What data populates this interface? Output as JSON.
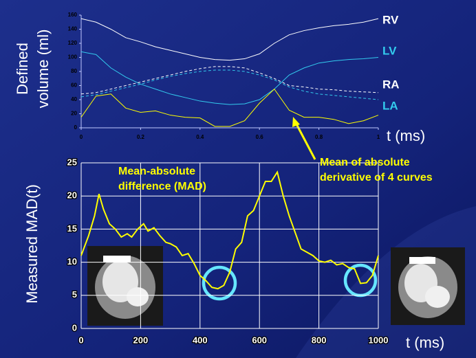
{
  "chart_data": [
    {
      "type": "line",
      "y_label": [
        "Defined",
        "volume (ml)"
      ],
      "x_label": "t (ms)",
      "x": [
        0,
        0.05,
        0.1,
        0.15,
        0.2,
        0.25,
        0.3,
        0.35,
        0.4,
        0.45,
        0.5,
        0.55,
        0.6,
        0.65,
        0.7,
        0.75,
        0.8,
        0.85,
        0.9,
        0.95,
        1
      ],
      "xlim": [
        0,
        1
      ],
      "xticks": [
        0,
        0.2,
        0.4,
        0.6,
        0.8,
        1
      ],
      "ylim": [
        0,
        160
      ],
      "yticks": [
        0,
        20,
        40,
        60,
        80,
        100,
        120,
        140,
        160
      ],
      "grid": false,
      "series": [
        {
          "name": "RV",
          "color": "#ffffff",
          "dashed": false,
          "values": [
            155,
            150,
            140,
            128,
            122,
            115,
            110,
            105,
            100,
            97,
            96,
            98,
            105,
            120,
            132,
            138,
            142,
            145,
            147,
            150,
            155
          ]
        },
        {
          "name": "LV",
          "color": "#33ccee",
          "dashed": false,
          "values": [
            108,
            104,
            85,
            72,
            62,
            55,
            48,
            43,
            38,
            35,
            33,
            34,
            40,
            55,
            75,
            85,
            92,
            95,
            97,
            98,
            100
          ]
        },
        {
          "name": "RA",
          "color": "#ffffff",
          "dashed": true,
          "values": [
            48,
            50,
            55,
            60,
            65,
            70,
            75,
            80,
            84,
            87,
            87,
            85,
            78,
            70,
            60,
            58,
            55,
            54,
            52,
            51,
            50
          ]
        },
        {
          "name": "LA",
          "color": "#33ccee",
          "dashed": true,
          "values": [
            44,
            47,
            52,
            57,
            62,
            68,
            73,
            77,
            80,
            82,
            82,
            80,
            75,
            68,
            58,
            52,
            48,
            46,
            44,
            42,
            40
          ]
        },
        {
          "color": "#ffff00",
          "dashed": false,
          "values": [
            15,
            45,
            48,
            28,
            22,
            24,
            18,
            15,
            14,
            2,
            2,
            10,
            35,
            55,
            25,
            15,
            15,
            12,
            6,
            10,
            18
          ]
        }
      ]
    },
    {
      "type": "line",
      "y_label": [
        "Measured MAD(t)"
      ],
      "x_label": "t (ms)",
      "annotations": [
        [
          "Mean-absolute",
          "difference (MAD)"
        ],
        [
          "Mean of absolute",
          "derivative of 4 curves"
        ]
      ],
      "x": [
        0,
        25,
        45,
        60,
        75,
        95,
        115,
        135,
        155,
        170,
        190,
        210,
        225,
        245,
        265,
        285,
        300,
        320,
        340,
        360,
        380,
        400,
        420,
        440,
        460,
        480,
        500,
        520,
        540,
        560,
        580,
        600,
        620,
        640,
        660,
        680,
        700,
        720,
        740,
        760,
        780,
        800,
        820,
        840,
        860,
        880,
        900,
        920,
        940,
        960,
        980,
        1000
      ],
      "xlim": [
        0,
        1000
      ],
      "xticks": [
        0,
        200,
        400,
        600,
        800,
        1000
      ],
      "ylim": [
        0,
        25
      ],
      "yticks": [
        0,
        5,
        10,
        15,
        20,
        25
      ],
      "grid": true,
      "series": [
        {
          "color": "#ffff00",
          "dashed": false,
          "values": [
            11,
            14,
            17,
            20.3,
            18,
            15.8,
            15,
            13.8,
            14.3,
            13.8,
            15,
            15.8,
            14.7,
            15.2,
            14,
            13,
            12.8,
            12.3,
            11,
            11.3,
            9.8,
            8,
            7.2,
            6.2,
            6,
            6.5,
            8.5,
            12,
            13,
            17,
            17.8,
            20,
            22.2,
            22.2,
            23.6,
            20,
            17,
            14.5,
            12,
            11.5,
            11,
            10.2,
            10,
            10.3,
            9.6,
            9.8,
            9.2,
            9,
            6.8,
            6.9,
            8,
            11
          ]
        }
      ]
    }
  ]
}
